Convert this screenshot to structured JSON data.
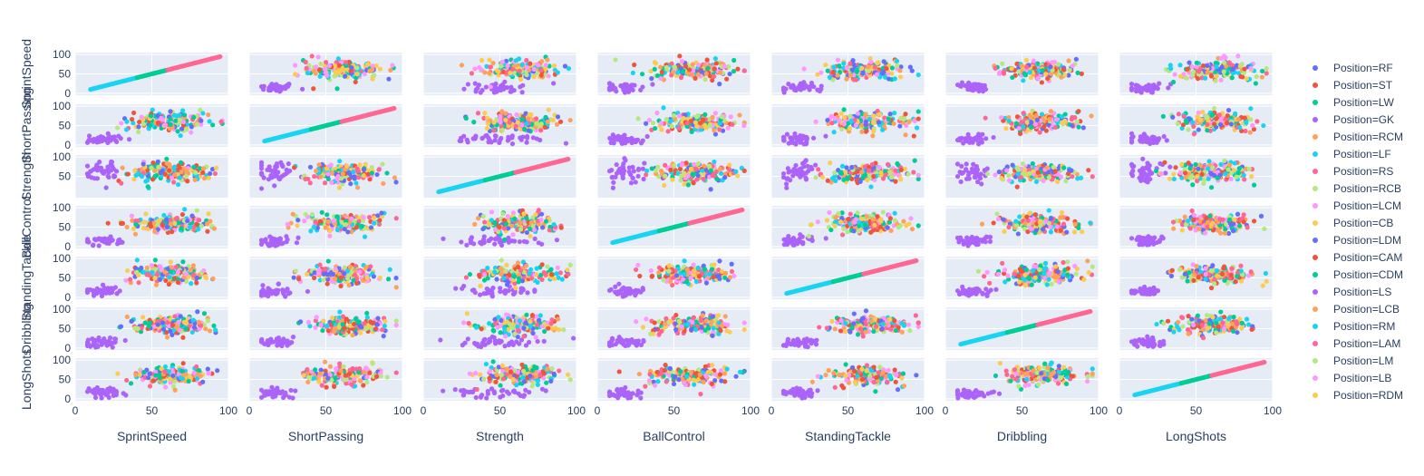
{
  "chart_data": {
    "type": "scatter",
    "variables": [
      "SprintSpeed",
      "ShortPassing",
      "Strength",
      "BallControl",
      "StandingTackle",
      "Dribbling",
      "LongShots"
    ],
    "x_ticks": [
      0,
      50,
      100
    ],
    "y_ticks": [
      0,
      50,
      100
    ],
    "strength_y_ticks": [
      50,
      100
    ],
    "xlim": [
      0,
      100
    ],
    "ylim": [
      0,
      100
    ],
    "legend": [
      {
        "label": "Position=RF",
        "color": "#636efa"
      },
      {
        "label": "Position=ST",
        "color": "#EF553B"
      },
      {
        "label": "Position=LW",
        "color": "#00cc96"
      },
      {
        "label": "Position=GK",
        "color": "#ab63fa"
      },
      {
        "label": "Position=RCM",
        "color": "#FFA15A"
      },
      {
        "label": "Position=LF",
        "color": "#19d3f3"
      },
      {
        "label": "Position=RS",
        "color": "#FF6692"
      },
      {
        "label": "Position=RCB",
        "color": "#B6E880"
      },
      {
        "label": "Position=LCM",
        "color": "#FF97FF"
      },
      {
        "label": "Position=CB",
        "color": "#FECB52"
      },
      {
        "label": "Position=LDM",
        "color": "#636efa"
      },
      {
        "label": "Position=CAM",
        "color": "#EF553B"
      },
      {
        "label": "Position=CDM",
        "color": "#00cc96"
      },
      {
        "label": "Position=LS",
        "color": "#ab63fa"
      },
      {
        "label": "Position=LCB",
        "color": "#FFA15A"
      },
      {
        "label": "Position=RM",
        "color": "#19d3f3"
      },
      {
        "label": "Position=LAM",
        "color": "#FF6692"
      },
      {
        "label": "Position=LM",
        "color": "#B6E880"
      },
      {
        "label": "Position=LB",
        "color": "#FF97FF"
      },
      {
        "label": "Position=RDM",
        "color": "#FECB52"
      }
    ],
    "cluster_summary": {
      "outfield_center": 65,
      "gk_low": 15,
      "diagonal": "x=y on matching variable pairs"
    },
    "grid": true,
    "legend_placement": "right"
  },
  "colors": {
    "plot_bg": "#e5ecf6",
    "grid": "#ffffff",
    "text": "#2a3f5f"
  }
}
